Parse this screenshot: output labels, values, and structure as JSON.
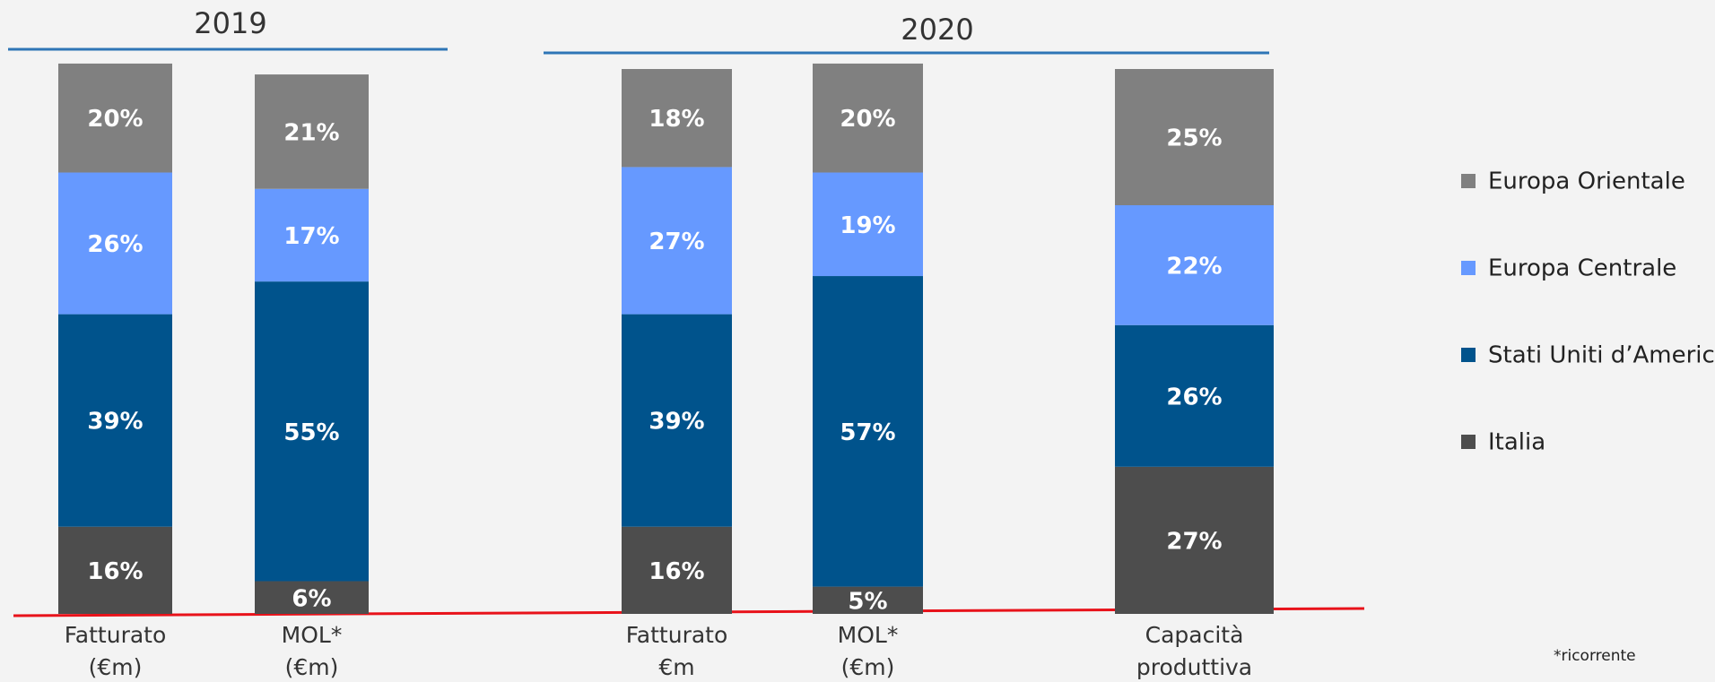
{
  "chart_data": {
    "type": "stacked_bar",
    "groups": [
      {
        "label": "2019",
        "span": 2
      },
      {
        "label": "2020",
        "span": 3
      }
    ],
    "categories": [
      [
        "Fatturato",
        "(€m)"
      ],
      [
        "MOL*",
        "(€m)"
      ],
      [
        "Fatturato",
        "€m"
      ],
      [
        "MOL*",
        "(€m)"
      ],
      [
        "Capacità",
        "produttiva"
      ]
    ],
    "series": [
      {
        "name": "Italia",
        "color": "#4d4d4d",
        "values": [
          16,
          6,
          16,
          5,
          27
        ],
        "value_labels": [
          "16%",
          "6%",
          "16%",
          "5%",
          "27%"
        ]
      },
      {
        "name": "Stati Uniti d’America",
        "color": "#00538c",
        "values": [
          39,
          55,
          39,
          57,
          26
        ],
        "value_labels": [
          "39%",
          "55%",
          "39%",
          "57%",
          "26%"
        ]
      },
      {
        "name": "Europa Centrale",
        "color": "#6699ff",
        "values": [
          26,
          17,
          27,
          19,
          22
        ],
        "value_labels": [
          "26%",
          "17%",
          "27%",
          "19%",
          "22%"
        ]
      },
      {
        "name": "Europa Orientale",
        "color": "#808080",
        "values": [
          20,
          21,
          18,
          20,
          25
        ],
        "value_labels": [
          "20%",
          "21%",
          "18%",
          "20%",
          "25%"
        ]
      }
    ],
    "legend": "right",
    "footnote": "*ricorrente"
  }
}
